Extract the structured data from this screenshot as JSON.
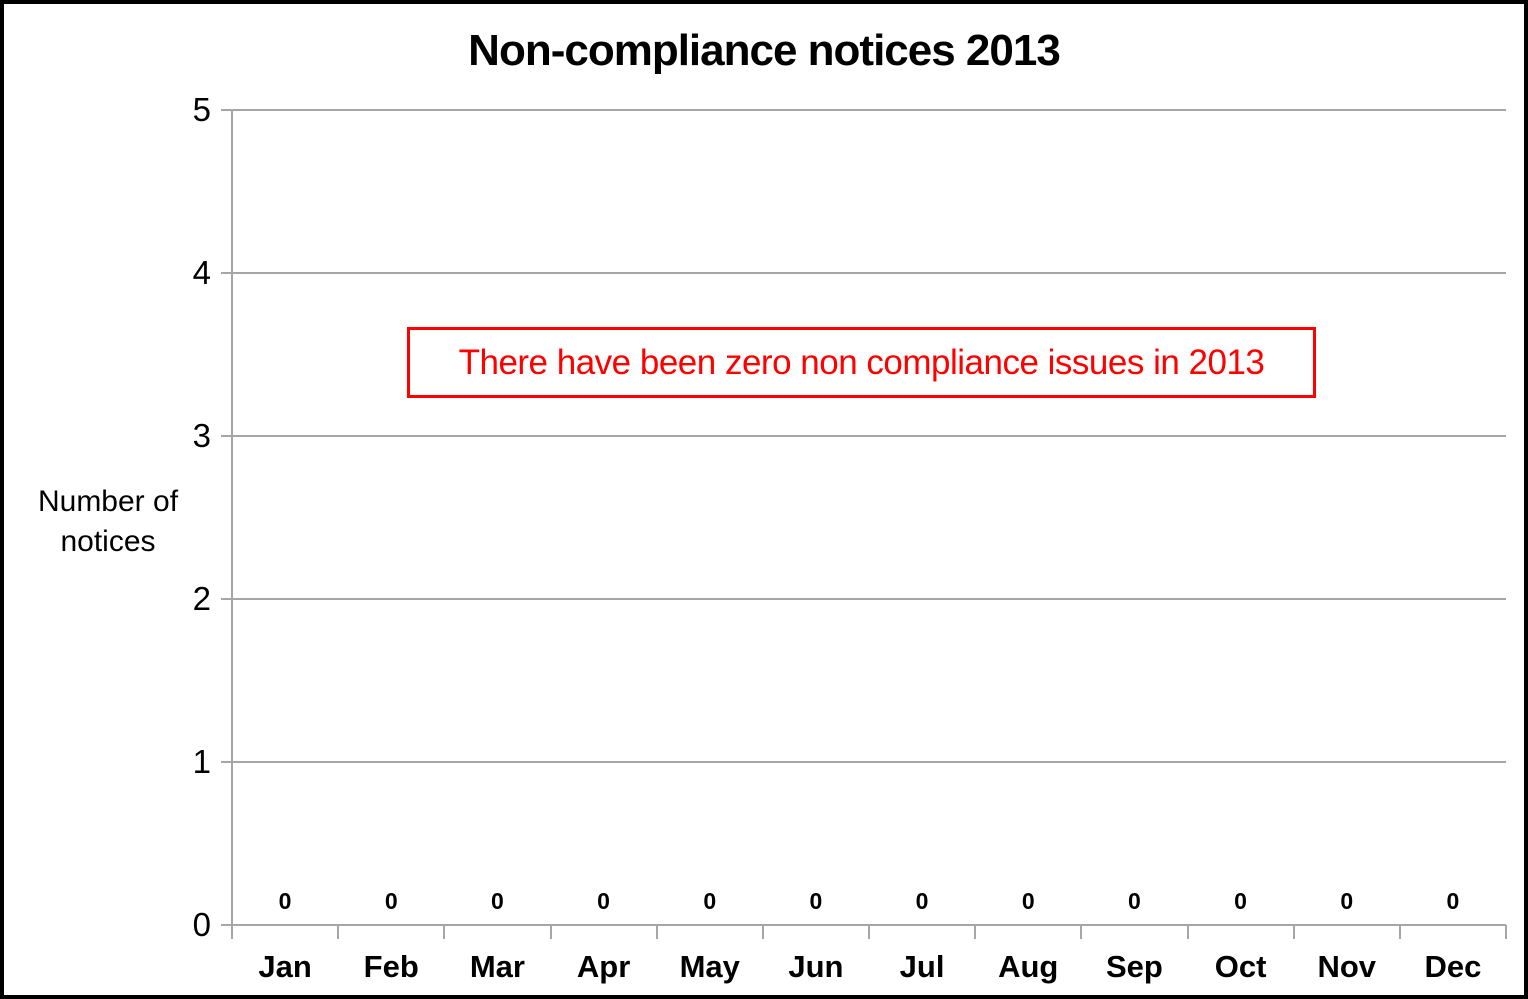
{
  "chart_data": {
    "type": "bar",
    "title": "Non-compliance notices 2013",
    "categories": [
      "Jan",
      "Feb",
      "Mar",
      "Apr",
      "May",
      "Jun",
      "Jul",
      "Aug",
      "Sep",
      "Oct",
      "Nov",
      "Dec"
    ],
    "values": [
      0,
      0,
      0,
      0,
      0,
      0,
      0,
      0,
      0,
      0,
      0,
      0
    ],
    "data_labels": [
      "0",
      "0",
      "0",
      "0",
      "0",
      "0",
      "0",
      "0",
      "0",
      "0",
      "0",
      "0"
    ],
    "ylabel": "Number of notices",
    "xlabel": "",
    "ylim": [
      0,
      5
    ],
    "yticks": [
      "0",
      "1",
      "2",
      "3",
      "4",
      "5"
    ],
    "grid": true,
    "legend": "none",
    "annotation": "There have been zero non compliance issues in 2013",
    "colors": {
      "grid": "#A6A6A6",
      "axis": "#A6A6A6",
      "text": "#000000",
      "annotation_text": "#FF0000",
      "annotation_border": "#FF0000",
      "background": "#FFFFFF",
      "frame_border": "#000000"
    }
  }
}
